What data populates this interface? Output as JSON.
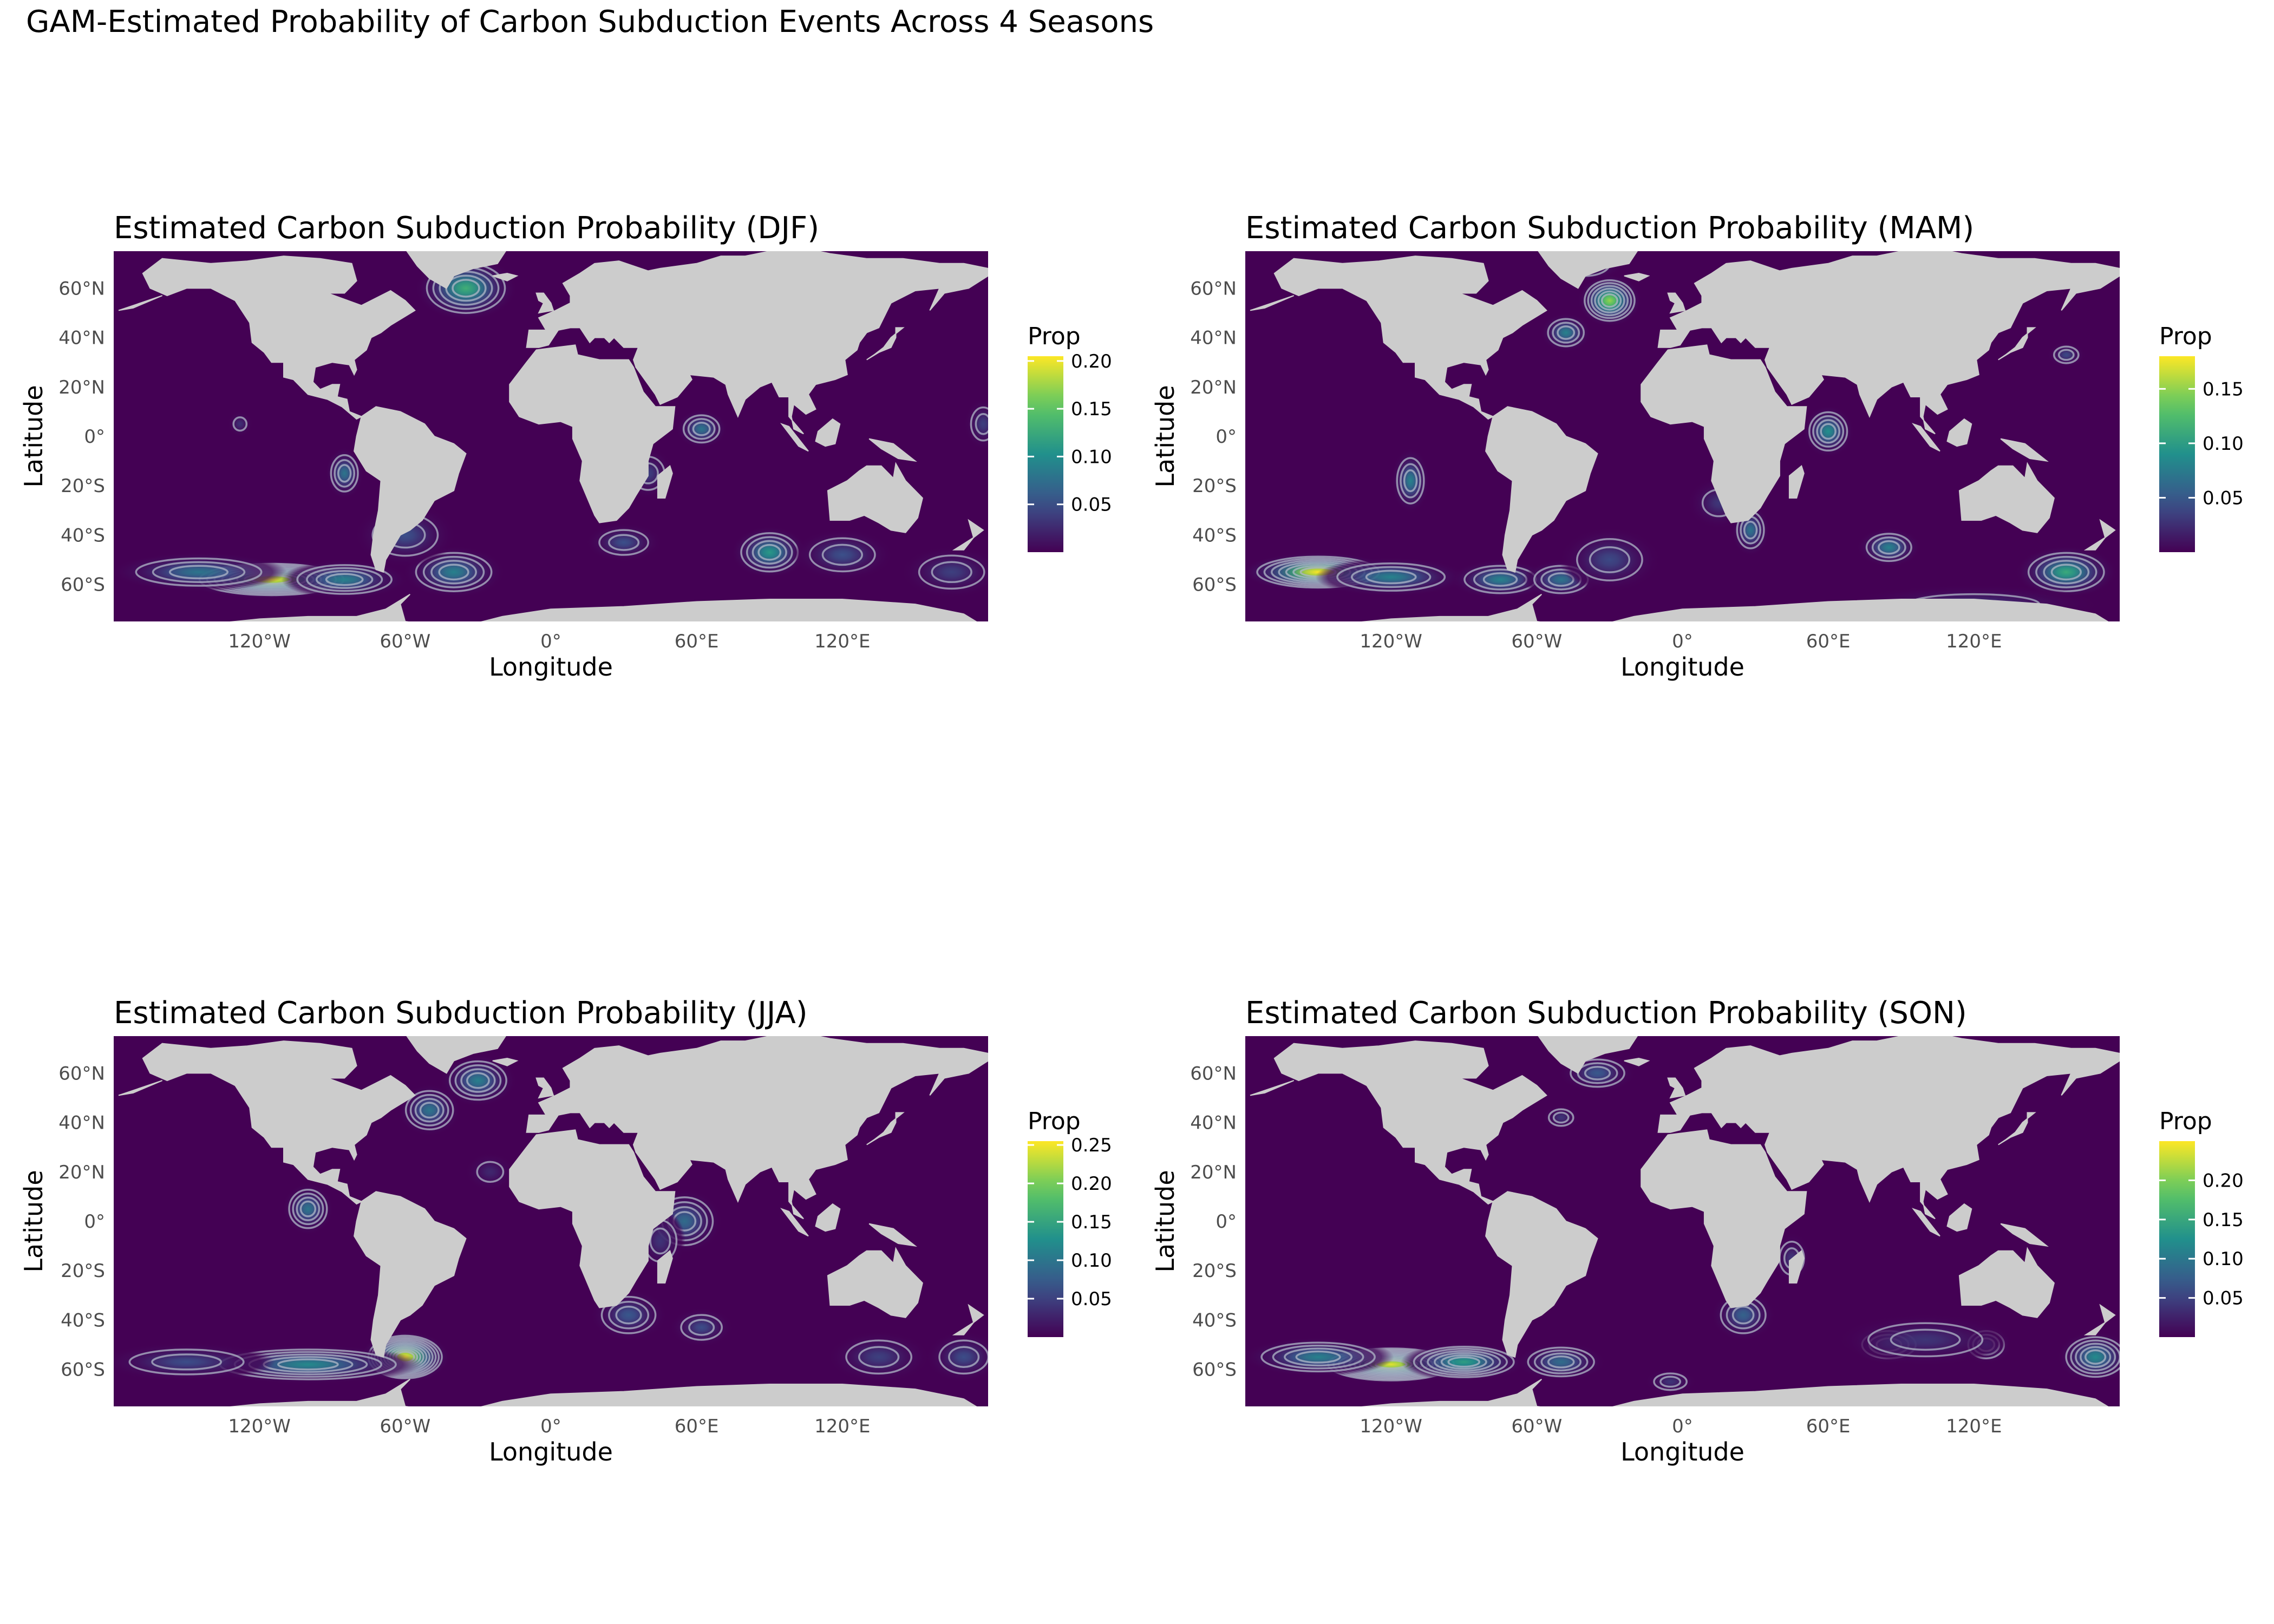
{
  "title": "GAM-Estimated Probability of Carbon Subduction Events Across 4 Seasons",
  "colors": {
    "ocean": "#440154",
    "land": "#cccccc",
    "contour": "#b0b8c8",
    "viridis": [
      "#440154",
      "#3b528b",
      "#21908c",
      "#5dc863",
      "#fde725"
    ]
  },
  "x_axis": {
    "label": "Longitude",
    "range": [
      -180,
      180
    ],
    "ticks": [
      -120,
      -60,
      0,
      60,
      120
    ],
    "tick_labels": [
      "120°W",
      "60°W",
      "0°",
      "60°E",
      "120°E"
    ]
  },
  "y_axis": {
    "label": "Latitude",
    "range": [
      -75,
      75
    ],
    "ticks": [
      60,
      40,
      20,
      0,
      -20,
      -40,
      -60
    ],
    "tick_labels": [
      "60°N",
      "40°N",
      "20°N",
      "0°",
      "20°S",
      "40°S",
      "60°S"
    ]
  },
  "legend_title": "Prop",
  "chart_data": [
    {
      "type": "heatmap",
      "title": "Estimated Carbon Subduction Probability (DJF)",
      "legend": {
        "max": 0.205,
        "ticks": [
          0.05,
          0.1,
          0.15,
          0.2
        ],
        "tick_labels": [
          "0.05",
          "0.10",
          "0.15",
          "0.20"
        ]
      },
      "hotspots": [
        {
          "lon": -115,
          "lat": -58,
          "value": 0.2,
          "sx": 14,
          "sy": 3
        },
        {
          "lon": -145,
          "lat": -55,
          "value": 0.08,
          "sx": 14,
          "sy": 3
        },
        {
          "lon": -85,
          "lat": -58,
          "value": 0.09,
          "sx": 10,
          "sy": 3
        },
        {
          "lon": -40,
          "lat": -55,
          "value": 0.09,
          "sx": 8,
          "sy": 4
        },
        {
          "lon": -60,
          "lat": -40,
          "value": 0.05,
          "sx": 8,
          "sy": 5
        },
        {
          "lon": -85,
          "lat": -15,
          "value": 0.08,
          "sx": 3,
          "sy": 4
        },
        {
          "lon": -35,
          "lat": 60,
          "value": 0.13,
          "sx": 8,
          "sy": 5
        },
        {
          "lon": 62,
          "lat": 3,
          "value": 0.08,
          "sx": 4,
          "sy": 3
        },
        {
          "lon": 90,
          "lat": -47,
          "value": 0.11,
          "sx": 6,
          "sy": 4
        },
        {
          "lon": 120,
          "lat": -48,
          "value": 0.05,
          "sx": 8,
          "sy": 4
        },
        {
          "lon": 30,
          "lat": -43,
          "value": 0.05,
          "sx": 6,
          "sy": 3
        },
        {
          "lon": 165,
          "lat": -55,
          "value": 0.04,
          "sx": 8,
          "sy": 4
        },
        {
          "lon": 40,
          "lat": -15,
          "value": 0.04,
          "sx": 4,
          "sy": 4
        },
        {
          "lon": 178,
          "lat": 5,
          "value": 0.04,
          "sx": 3,
          "sy": 4
        },
        {
          "lon": -128,
          "lat": 5,
          "value": 0.03,
          "sx": 2,
          "sy": 2
        }
      ]
    },
    {
      "type": "heatmap",
      "title": "Estimated Carbon Subduction Probability (MAM)",
      "legend": {
        "max": 0.18,
        "ticks": [
          0.05,
          0.1,
          0.15
        ],
        "tick_labels": [
          "0.05",
          "0.10",
          "0.15"
        ]
      },
      "hotspots": [
        {
          "lon": -150,
          "lat": -55,
          "value": 0.18,
          "sx": 12,
          "sy": 3
        },
        {
          "lon": -120,
          "lat": -57,
          "value": 0.08,
          "sx": 12,
          "sy": 3
        },
        {
          "lon": -75,
          "lat": -58,
          "value": 0.08,
          "sx": 8,
          "sy": 3
        },
        {
          "lon": -50,
          "lat": -58,
          "value": 0.07,
          "sx": 6,
          "sy": 3
        },
        {
          "lon": -30,
          "lat": -50,
          "value": 0.04,
          "sx": 8,
          "sy": 5
        },
        {
          "lon": -30,
          "lat": 55,
          "value": 0.15,
          "sx": 5,
          "sy": 4
        },
        {
          "lon": -48,
          "lat": 42,
          "value": 0.08,
          "sx": 4,
          "sy": 3
        },
        {
          "lon": -40,
          "lat": 70,
          "value": 0.05,
          "sx": 6,
          "sy": 3
        },
        {
          "lon": -112,
          "lat": -18,
          "value": 0.08,
          "sx": 3,
          "sy": 5
        },
        {
          "lon": 60,
          "lat": 2,
          "value": 0.09,
          "sx": 4,
          "sy": 4
        },
        {
          "lon": 28,
          "lat": -38,
          "value": 0.07,
          "sx": 3,
          "sy": 4
        },
        {
          "lon": 85,
          "lat": -45,
          "value": 0.08,
          "sx": 5,
          "sy": 3
        },
        {
          "lon": 158,
          "lat": -55,
          "value": 0.11,
          "sx": 8,
          "sy": 4
        },
        {
          "lon": 158,
          "lat": 33,
          "value": 0.04,
          "sx": 3,
          "sy": 2
        },
        {
          "lon": 120,
          "lat": -68,
          "value": 0.03,
          "sx": 20,
          "sy": 3
        },
        {
          "lon": 15,
          "lat": -27,
          "value": 0.03,
          "sx": 5,
          "sy": 4
        }
      ]
    },
    {
      "type": "heatmap",
      "title": "Estimated Carbon Subduction Probability (JJA)",
      "legend": {
        "max": 0.255,
        "ticks": [
          0.05,
          0.1,
          0.15,
          0.2,
          0.25
        ],
        "tick_labels": [
          "0.05",
          "0.10",
          "0.15",
          "0.20",
          "0.25"
        ]
      },
      "hotspots": [
        {
          "lon": -60,
          "lat": -55,
          "value": 0.25,
          "sx": 7,
          "sy": 4
        },
        {
          "lon": -100,
          "lat": -58,
          "value": 0.12,
          "sx": 18,
          "sy": 3
        },
        {
          "lon": -150,
          "lat": -57,
          "value": 0.06,
          "sx": 14,
          "sy": 3
        },
        {
          "lon": -100,
          "lat": 5,
          "value": 0.1,
          "sx": 4,
          "sy": 4
        },
        {
          "lon": -50,
          "lat": 45,
          "value": 0.1,
          "sx": 5,
          "sy": 4
        },
        {
          "lon": -30,
          "lat": 57,
          "value": 0.11,
          "sx": 6,
          "sy": 4
        },
        {
          "lon": 55,
          "lat": 0,
          "value": 0.09,
          "sx": 6,
          "sy": 5
        },
        {
          "lon": 32,
          "lat": -38,
          "value": 0.07,
          "sx": 6,
          "sy": 4
        },
        {
          "lon": 62,
          "lat": -43,
          "value": 0.06,
          "sx": 5,
          "sy": 3
        },
        {
          "lon": 135,
          "lat": -55,
          "value": 0.05,
          "sx": 8,
          "sy": 4
        },
        {
          "lon": 170,
          "lat": -55,
          "value": 0.06,
          "sx": 6,
          "sy": 4
        },
        {
          "lon": 45,
          "lat": -8,
          "value": 0.04,
          "sx": 4,
          "sy": 5
        },
        {
          "lon": -25,
          "lat": 20,
          "value": 0.03,
          "sx": 4,
          "sy": 3
        }
      ]
    },
    {
      "type": "heatmap",
      "title": "Estimated Carbon Subduction Probability (SON)",
      "legend": {
        "max": 0.25,
        "ticks": [
          0.05,
          0.1,
          0.15,
          0.2
        ],
        "tick_labels": [
          "0.05",
          "0.10",
          "0.15",
          "0.20"
        ]
      },
      "hotspots": [
        {
          "lon": -120,
          "lat": -58,
          "value": 0.24,
          "sx": 12,
          "sy": 3
        },
        {
          "lon": -150,
          "lat": -55,
          "value": 0.11,
          "sx": 12,
          "sy": 3
        },
        {
          "lon": -90,
          "lat": -57,
          "value": 0.14,
          "sx": 10,
          "sy": 3
        },
        {
          "lon": -50,
          "lat": -57,
          "value": 0.09,
          "sx": 7,
          "sy": 3
        },
        {
          "lon": -35,
          "lat": 60,
          "value": 0.07,
          "sx": 6,
          "sy": 3
        },
        {
          "lon": -50,
          "lat": 42,
          "value": 0.04,
          "sx": 3,
          "sy": 2
        },
        {
          "lon": 25,
          "lat": -38,
          "value": 0.08,
          "sx": 5,
          "sy": 4
        },
        {
          "lon": 85,
          "lat": -50,
          "value": 0.08,
          "sx": 6,
          "sy": 3
        },
        {
          "lon": 125,
          "lat": -50,
          "value": 0.07,
          "sx": 4,
          "sy": 3
        },
        {
          "lon": 170,
          "lat": -55,
          "value": 0.12,
          "sx": 6,
          "sy": 4
        },
        {
          "lon": 45,
          "lat": -15,
          "value": 0.04,
          "sx": 3,
          "sy": 4
        },
        {
          "lon": -5,
          "lat": -65,
          "value": 0.04,
          "sx": 4,
          "sy": 2
        },
        {
          "lon": 100,
          "lat": -48,
          "value": 0.04,
          "sx": 14,
          "sy": 4
        }
      ]
    }
  ]
}
